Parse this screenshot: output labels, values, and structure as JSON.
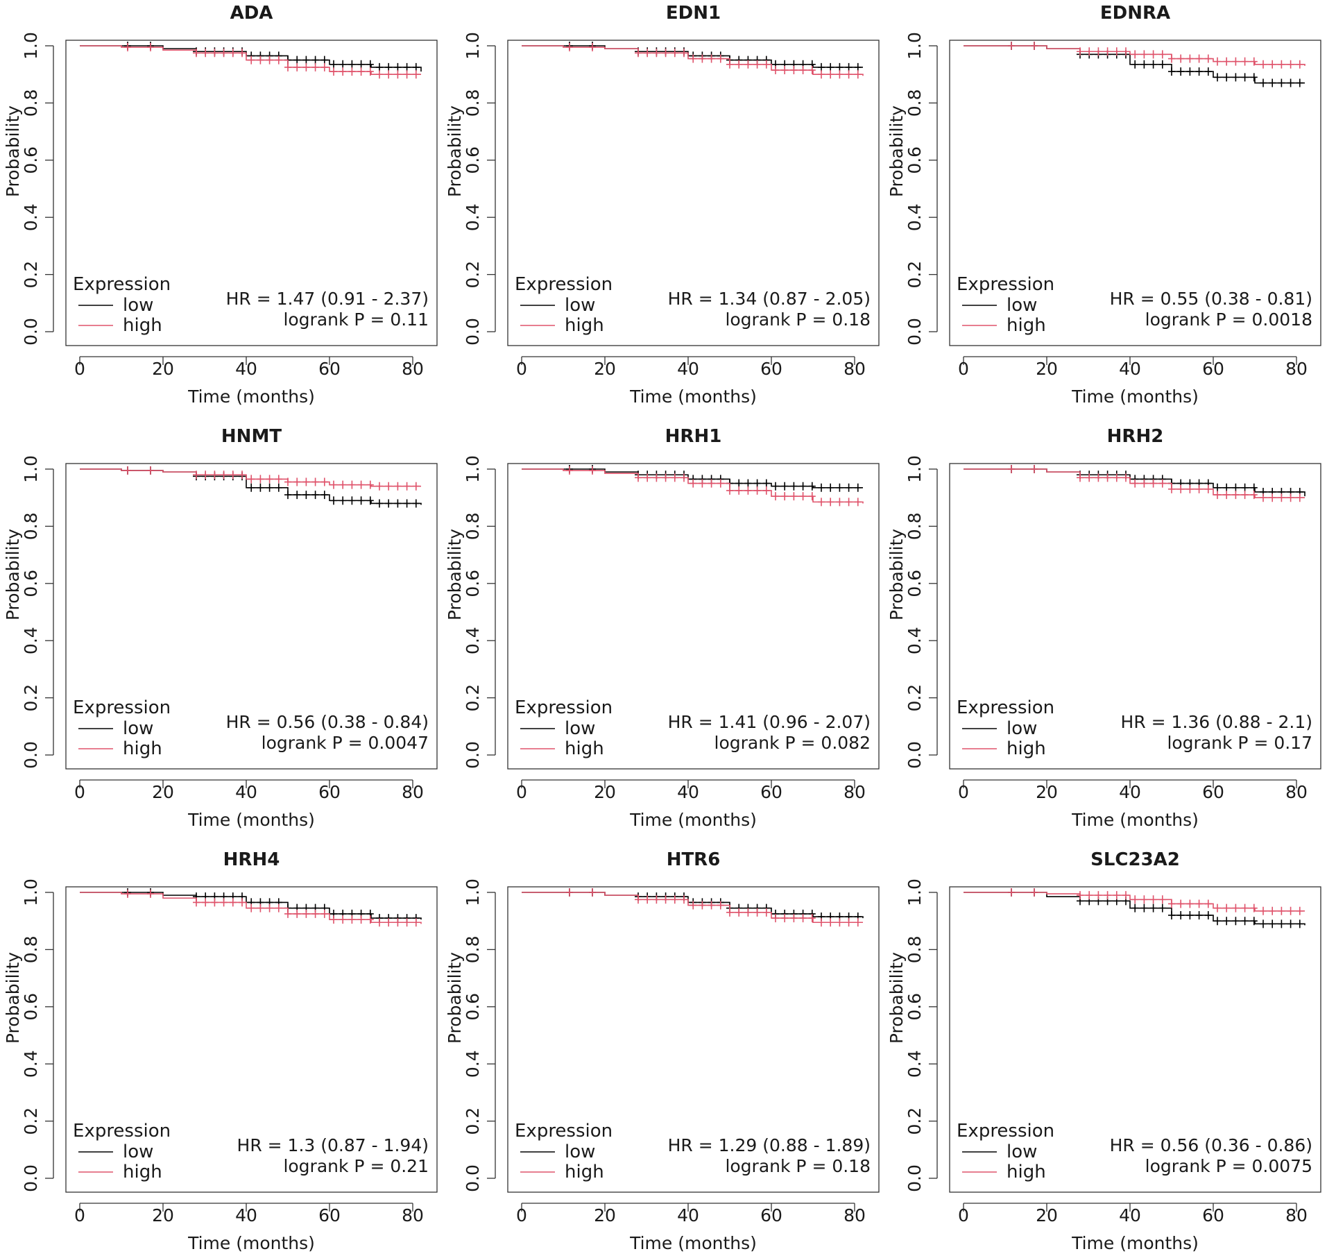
{
  "chart_data": [
    {
      "type": "line",
      "title": "ADA",
      "xlabel": "Time (months)",
      "ylabel": "Probability",
      "xlim": [
        0,
        85
      ],
      "ylim": [
        0,
        1
      ],
      "xticks": [
        "0",
        "20",
        "40",
        "60",
        "80"
      ],
      "yticks": [
        "0.0",
        "0.2",
        "0.4",
        "0.6",
        "0.8",
        "1.0"
      ],
      "legend": {
        "title": "Expression",
        "items": [
          "low",
          "high"
        ],
        "position": "bottom-left"
      },
      "hr": "HR = 1.47 (0.91 - 2.37)",
      "pvalue": "logrank P = 0.11",
      "series": [
        {
          "name": "low",
          "color": "#000000",
          "x": [
            0,
            10,
            20,
            28,
            40,
            50,
            60,
            70,
            82
          ],
          "y": [
            1.0,
            1.0,
            0.99,
            0.98,
            0.965,
            0.95,
            0.935,
            0.925,
            0.91
          ]
        },
        {
          "name": "high",
          "color": "#df536b",
          "x": [
            0,
            10,
            20,
            28,
            40,
            50,
            60,
            70,
            82
          ],
          "y": [
            1.0,
            0.995,
            0.985,
            0.975,
            0.95,
            0.925,
            0.91,
            0.9,
            0.9
          ]
        }
      ]
    },
    {
      "type": "line",
      "title": "EDN1",
      "xlabel": "Time (months)",
      "ylabel": "Probability",
      "xlim": [
        0,
        85
      ],
      "ylim": [
        0,
        1
      ],
      "xticks": [
        "0",
        "20",
        "40",
        "60",
        "80"
      ],
      "yticks": [
        "0.0",
        "0.2",
        "0.4",
        "0.6",
        "0.8",
        "1.0"
      ],
      "legend": {
        "title": "Expression",
        "items": [
          "low",
          "high"
        ],
        "position": "bottom-left"
      },
      "hr": "HR = 1.34 (0.87 - 2.05)",
      "pvalue": "logrank P = 0.18",
      "series": [
        {
          "name": "low",
          "color": "#000000",
          "x": [
            0,
            10,
            20,
            28,
            40,
            50,
            60,
            70,
            82
          ],
          "y": [
            1.0,
            1.0,
            0.99,
            0.98,
            0.965,
            0.95,
            0.935,
            0.925,
            0.925
          ]
        },
        {
          "name": "high",
          "color": "#df536b",
          "x": [
            0,
            10,
            20,
            28,
            40,
            50,
            60,
            70,
            82
          ],
          "y": [
            1.0,
            0.995,
            0.99,
            0.975,
            0.955,
            0.935,
            0.915,
            0.9,
            0.895
          ]
        }
      ]
    },
    {
      "type": "line",
      "title": "EDNRA",
      "xlabel": "Time (months)",
      "ylabel": "Probability",
      "xlim": [
        0,
        85
      ],
      "ylim": [
        0,
        1
      ],
      "xticks": [
        "0",
        "20",
        "40",
        "60",
        "80"
      ],
      "yticks": [
        "0.0",
        "0.2",
        "0.4",
        "0.6",
        "0.8",
        "1.0"
      ],
      "legend": {
        "title": "Expression",
        "items": [
          "low",
          "high"
        ],
        "position": "bottom-left"
      },
      "hr": "HR = 0.55 (0.38 - 0.81)",
      "pvalue": "logrank P = 0.0018",
      "series": [
        {
          "name": "low",
          "color": "#000000",
          "x": [
            0,
            10,
            20,
            28,
            40,
            50,
            60,
            70,
            82
          ],
          "y": [
            1.0,
            1.0,
            0.99,
            0.97,
            0.935,
            0.91,
            0.89,
            0.87,
            0.87
          ]
        },
        {
          "name": "high",
          "color": "#df536b",
          "x": [
            0,
            10,
            20,
            28,
            40,
            50,
            60,
            70,
            82
          ],
          "y": [
            1.0,
            1.0,
            0.99,
            0.98,
            0.97,
            0.955,
            0.945,
            0.935,
            0.93
          ]
        }
      ]
    },
    {
      "type": "line",
      "title": "HNMT",
      "xlabel": "Time (months)",
      "ylabel": "Probability",
      "xlim": [
        0,
        85
      ],
      "ylim": [
        0,
        1
      ],
      "xticks": [
        "0",
        "20",
        "40",
        "60",
        "80"
      ],
      "yticks": [
        "0.0",
        "0.2",
        "0.4",
        "0.6",
        "0.8",
        "1.0"
      ],
      "legend": {
        "title": "Expression",
        "items": [
          "low",
          "high"
        ],
        "position": "bottom-left"
      },
      "hr": "HR = 0.56 (0.38 - 0.84)",
      "pvalue": "logrank P = 0.0047",
      "series": [
        {
          "name": "low",
          "color": "#000000",
          "x": [
            0,
            10,
            20,
            28,
            40,
            50,
            60,
            70,
            82
          ],
          "y": [
            1.0,
            0.995,
            0.99,
            0.975,
            0.935,
            0.91,
            0.89,
            0.88,
            0.875
          ]
        },
        {
          "name": "high",
          "color": "#df536b",
          "x": [
            0,
            10,
            20,
            28,
            40,
            50,
            60,
            70,
            82
          ],
          "y": [
            1.0,
            0.995,
            0.99,
            0.98,
            0.965,
            0.955,
            0.945,
            0.94,
            0.94
          ]
        }
      ]
    },
    {
      "type": "line",
      "title": "HRH1",
      "xlabel": "Time (months)",
      "ylabel": "Probability",
      "xlim": [
        0,
        85
      ],
      "ylim": [
        0,
        1
      ],
      "xticks": [
        "0",
        "20",
        "40",
        "60",
        "80"
      ],
      "yticks": [
        "0.0",
        "0.2",
        "0.4",
        "0.6",
        "0.8",
        "1.0"
      ],
      "legend": {
        "title": "Expression",
        "items": [
          "low",
          "high"
        ],
        "position": "bottom-left"
      },
      "hr": "HR = 1.41 (0.96 - 2.07)",
      "pvalue": "logrank P = 0.082",
      "series": [
        {
          "name": "low",
          "color": "#000000",
          "x": [
            0,
            10,
            20,
            28,
            40,
            50,
            60,
            70,
            82
          ],
          "y": [
            1.0,
            1.0,
            0.99,
            0.98,
            0.965,
            0.95,
            0.94,
            0.935,
            0.935
          ]
        },
        {
          "name": "high",
          "color": "#df536b",
          "x": [
            0,
            10,
            20,
            28,
            40,
            50,
            60,
            70,
            82
          ],
          "y": [
            1.0,
            0.995,
            0.985,
            0.97,
            0.95,
            0.925,
            0.905,
            0.885,
            0.88
          ]
        }
      ]
    },
    {
      "type": "line",
      "title": "HRH2",
      "xlabel": "Time (months)",
      "ylabel": "Probability",
      "xlim": [
        0,
        85
      ],
      "ylim": [
        0,
        1
      ],
      "xticks": [
        "0",
        "20",
        "40",
        "60",
        "80"
      ],
      "yticks": [
        "0.0",
        "0.2",
        "0.4",
        "0.6",
        "0.8",
        "1.0"
      ],
      "legend": {
        "title": "Expression",
        "items": [
          "low",
          "high"
        ],
        "position": "bottom-left"
      },
      "hr": "HR = 1.36 (0.88 - 2.1)",
      "pvalue": "logrank P = 0.17",
      "series": [
        {
          "name": "low",
          "color": "#000000",
          "x": [
            0,
            10,
            20,
            28,
            40,
            50,
            60,
            70,
            82
          ],
          "y": [
            1.0,
            1.0,
            0.99,
            0.98,
            0.965,
            0.95,
            0.935,
            0.92,
            0.905
          ]
        },
        {
          "name": "high",
          "color": "#df536b",
          "x": [
            0,
            10,
            20,
            28,
            40,
            50,
            60,
            70,
            82
          ],
          "y": [
            1.0,
            1.0,
            0.99,
            0.97,
            0.95,
            0.93,
            0.91,
            0.9,
            0.9
          ]
        }
      ]
    },
    {
      "type": "line",
      "title": "HRH4",
      "xlabel": "Time (months)",
      "ylabel": "Probability",
      "xlim": [
        0,
        85
      ],
      "ylim": [
        0,
        1
      ],
      "xticks": [
        "0",
        "20",
        "40",
        "60",
        "80"
      ],
      "yticks": [
        "0.0",
        "0.2",
        "0.4",
        "0.6",
        "0.8",
        "1.0"
      ],
      "legend": {
        "title": "Expression",
        "items": [
          "low",
          "high"
        ],
        "position": "bottom-left"
      },
      "hr": "HR = 1.3 (0.87 - 1.94)",
      "pvalue": "logrank P = 0.21",
      "series": [
        {
          "name": "low",
          "color": "#000000",
          "x": [
            0,
            10,
            20,
            28,
            40,
            50,
            60,
            70,
            82
          ],
          "y": [
            1.0,
            1.0,
            0.99,
            0.985,
            0.965,
            0.945,
            0.925,
            0.91,
            0.905
          ]
        },
        {
          "name": "high",
          "color": "#df536b",
          "x": [
            0,
            10,
            20,
            28,
            40,
            50,
            60,
            70,
            82
          ],
          "y": [
            1.0,
            0.995,
            0.98,
            0.965,
            0.945,
            0.925,
            0.905,
            0.895,
            0.89
          ]
        }
      ]
    },
    {
      "type": "line",
      "title": "HTR6",
      "xlabel": "Time (months)",
      "ylabel": "Probability",
      "xlim": [
        0,
        85
      ],
      "ylim": [
        0,
        1
      ],
      "xticks": [
        "0",
        "20",
        "40",
        "60",
        "80"
      ],
      "yticks": [
        "0.0",
        "0.2",
        "0.4",
        "0.6",
        "0.8",
        "1.0"
      ],
      "legend": {
        "title": "Expression",
        "items": [
          "low",
          "high"
        ],
        "position": "bottom-left"
      },
      "hr": "HR = 1.29 (0.88 - 1.89)",
      "pvalue": "logrank P = 0.18",
      "series": [
        {
          "name": "low",
          "color": "#000000",
          "x": [
            0,
            10,
            20,
            28,
            40,
            50,
            60,
            70,
            82
          ],
          "y": [
            1.0,
            1.0,
            0.99,
            0.985,
            0.965,
            0.945,
            0.925,
            0.915,
            0.91
          ]
        },
        {
          "name": "high",
          "color": "#df536b",
          "x": [
            0,
            10,
            20,
            28,
            40,
            50,
            60,
            70,
            82
          ],
          "y": [
            1.0,
            1.0,
            0.99,
            0.975,
            0.955,
            0.93,
            0.91,
            0.895,
            0.895
          ]
        }
      ]
    },
    {
      "type": "line",
      "title": "SLC23A2",
      "xlabel": "Time (months)",
      "ylabel": "Probability",
      "xlim": [
        0,
        85
      ],
      "ylim": [
        0,
        1
      ],
      "xticks": [
        "0",
        "20",
        "40",
        "60",
        "80"
      ],
      "yticks": [
        "0.0",
        "0.2",
        "0.4",
        "0.6",
        "0.8",
        "1.0"
      ],
      "legend": {
        "title": "Expression",
        "items": [
          "low",
          "high"
        ],
        "position": "bottom-left"
      },
      "hr": "HR = 0.56 (0.36 - 0.86)",
      "pvalue": "logrank P = 0.0075",
      "series": [
        {
          "name": "low",
          "color": "#000000",
          "x": [
            0,
            10,
            20,
            28,
            40,
            50,
            60,
            70,
            82
          ],
          "y": [
            1.0,
            1.0,
            0.985,
            0.97,
            0.945,
            0.92,
            0.9,
            0.89,
            0.885
          ]
        },
        {
          "name": "high",
          "color": "#df536b",
          "x": [
            0,
            10,
            20,
            28,
            40,
            50,
            60,
            70,
            82
          ],
          "y": [
            1.0,
            1.0,
            0.995,
            0.99,
            0.975,
            0.96,
            0.945,
            0.935,
            0.935
          ]
        }
      ]
    }
  ]
}
